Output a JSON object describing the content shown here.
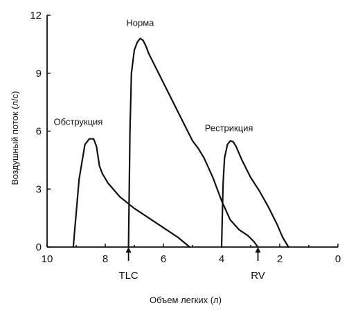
{
  "chart_data": {
    "type": "line",
    "xlabel": "Объем легких (л)",
    "ylabel": "Воздушный поток (л/с)",
    "xlim": [
      10,
      0
    ],
    "ylim": [
      0,
      12
    ],
    "x_reversed": true,
    "xticks": [
      "10",
      "8",
      "6",
      "4",
      "2",
      "0"
    ],
    "xtick_values": [
      10,
      8,
      6,
      4,
      2,
      0
    ],
    "yticks": [
      "0",
      "3",
      "6",
      "9",
      "12"
    ],
    "ytick_values": [
      0,
      3,
      6,
      9,
      12
    ],
    "grid": false,
    "series": [
      {
        "name": "Обструкция",
        "x": [
          9.1,
          8.9,
          8.7,
          8.55,
          8.4,
          8.3,
          8.2,
          8.1,
          7.9,
          7.5,
          7.0,
          6.5,
          6.0,
          5.5,
          5.1
        ],
        "y": [
          0,
          3.5,
          5.3,
          5.6,
          5.6,
          5.2,
          4.2,
          3.8,
          3.3,
          2.6,
          2.0,
          1.5,
          1.0,
          0.5,
          0
        ]
      },
      {
        "name": "Норма",
        "x": [
          7.2,
          7.15,
          7.1,
          7.0,
          6.9,
          6.8,
          6.7,
          6.6,
          6.5,
          6.0,
          5.5,
          5.0,
          4.8,
          4.6,
          4.3,
          4.0,
          3.7,
          3.4,
          3.1,
          2.9,
          2.75
        ],
        "y": [
          0,
          6.0,
          9.0,
          10.2,
          10.6,
          10.8,
          10.7,
          10.4,
          10.0,
          8.5,
          7.0,
          5.5,
          5.1,
          4.6,
          3.6,
          2.4,
          1.4,
          0.9,
          0.6,
          0.3,
          0
        ]
      },
      {
        "name": "Рестрикция",
        "x": [
          4.0,
          3.95,
          3.9,
          3.8,
          3.7,
          3.6,
          3.5,
          3.3,
          3.0,
          2.7,
          2.4,
          2.1,
          1.9,
          1.7
        ],
        "y": [
          0,
          3.2,
          4.6,
          5.3,
          5.5,
          5.45,
          5.2,
          4.5,
          3.6,
          2.9,
          2.1,
          1.2,
          0.5,
          0
        ]
      }
    ],
    "vertical_markers": [
      {
        "label": "TLC",
        "x": 7.2
      },
      {
        "label": "RV",
        "x": 2.75
      }
    ]
  }
}
